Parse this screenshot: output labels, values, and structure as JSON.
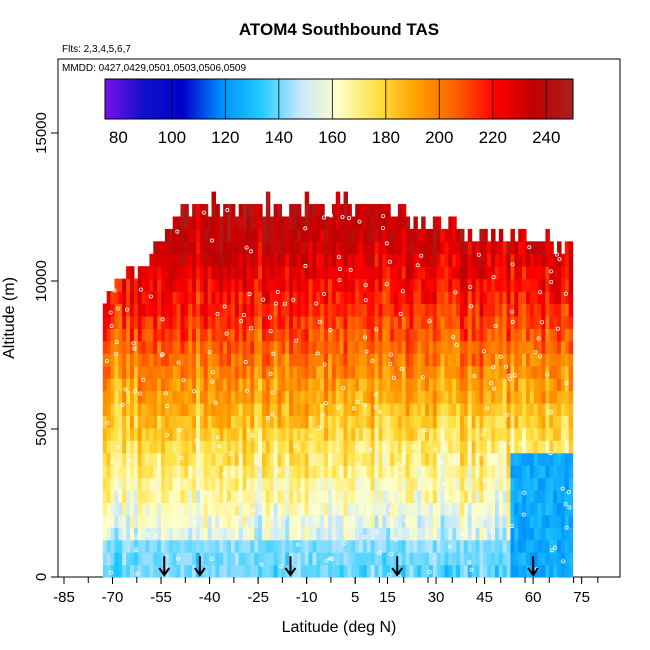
{
  "chart_data": {
    "type": "heatmap",
    "title": "ATOM4 Southbound TAS",
    "flights_note": "Flts: 2,3,4,5,6,7",
    "dates_note": "MMDD: 0427,0429,0501,0503,0506,0509",
    "xlabel": "Latitude (deg N)",
    "ylabel": "Altitude (m)",
    "xlim": [
      -85,
      85
    ],
    "ylim": [
      0,
      17500
    ],
    "x_ticks": [
      -85,
      -70,
      -55,
      -40,
      -25,
      -10,
      5,
      15,
      30,
      45,
      60,
      75
    ],
    "y_ticks": [
      0,
      5000,
      10000,
      15000
    ],
    "colorbar": {
      "range": [
        75,
        250
      ],
      "ticks": [
        80,
        100,
        120,
        140,
        160,
        180,
        200,
        220,
        240
      ],
      "segment_edges": [
        100,
        120,
        140,
        160,
        180,
        200,
        220,
        240
      ],
      "colors": [
        "#7a10f0",
        "#1010c8",
        "#0000cc",
        "#0090ff",
        "#22ccff",
        "#c8e8ff",
        "#ffffc8",
        "#ffe040",
        "#ffa000",
        "#ff6000",
        "#ff0000",
        "#c00000",
        "#a82020"
      ]
    },
    "profile_boundary": [
      {
        "lat": -73,
        "top_alt": 9500
      },
      {
        "lat": -62,
        "top_alt": 10300
      },
      {
        "lat": -55,
        "top_alt": 11300
      },
      {
        "lat": -45,
        "top_alt": 12400
      },
      {
        "lat": -20,
        "top_alt": 12400
      },
      {
        "lat": 10,
        "top_alt": 12400
      },
      {
        "lat": 25,
        "top_alt": 11800
      },
      {
        "lat": 40,
        "top_alt": 11500
      },
      {
        "lat": 55,
        "top_alt": 11200
      },
      {
        "lat": 72,
        "top_alt": 11000
      }
    ],
    "tas_profile": [
      {
        "alt": 0,
        "tas": 140
      },
      {
        "alt": 1000,
        "tas": 150
      },
      {
        "alt": 2500,
        "tas": 162
      },
      {
        "alt": 4000,
        "tas": 172
      },
      {
        "alt": 5500,
        "tas": 185
      },
      {
        "alt": 7000,
        "tas": 198
      },
      {
        "alt": 8500,
        "tas": 212
      },
      {
        "alt": 10000,
        "tas": 224
      },
      {
        "alt": 11000,
        "tas": 232
      },
      {
        "alt": 12500,
        "tas": 238
      }
    ],
    "cold_region": {
      "lat_min": 52,
      "lat_max": 72,
      "alt_max": 4000,
      "tas": 125
    },
    "arrows_lat": [
      -54,
      -43,
      -15,
      18,
      60
    ]
  }
}
